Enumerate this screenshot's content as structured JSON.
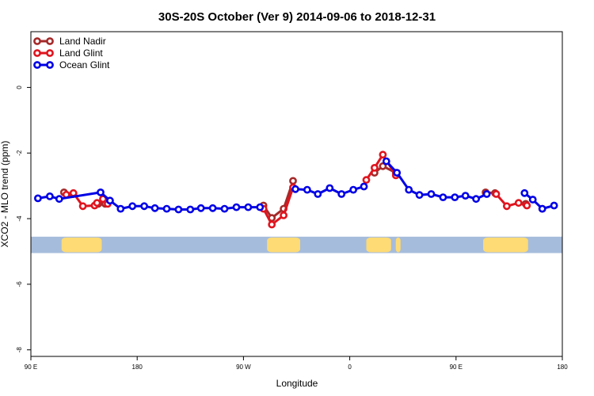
{
  "chart_data": {
    "type": "line",
    "title": "30S-20S October (Ver 9)   2014-09-06 to 2018-12-31",
    "xlabel": "Longitude",
    "ylabel": "XCO2 - MLO trend (ppm)",
    "xlim": [
      90,
      540
    ],
    "ylim": [
      -8.2,
      1.7
    ],
    "x_ticks": [
      {
        "value": 90,
        "label": "90 E"
      },
      {
        "value": 180,
        "label": "180"
      },
      {
        "value": 270,
        "label": "90 W"
      },
      {
        "value": 360,
        "label": "0"
      },
      {
        "value": 450,
        "label": "90 E"
      },
      {
        "value": 540,
        "label": "180"
      }
    ],
    "y_ticks": [
      {
        "value": 0,
        "label": "0"
      },
      {
        "value": -2,
        "label": "-2"
      },
      {
        "value": -4,
        "label": "-4"
      },
      {
        "value": -6,
        "label": "-6"
      },
      {
        "value": -8,
        "label": "-8"
      }
    ],
    "legend_position": "top-left",
    "series": [
      {
        "name": "Land Nadir",
        "color": "#a52a2a",
        "segments": [
          [
            [
              118,
              -3.2
            ],
            [
              126,
              -3.25
            ]
          ],
          [
            [
              147,
              -3.55
            ],
            [
              153,
              -3.55
            ]
          ],
          [
            [
              287,
              -3.6
            ],
            [
              294,
              -3.98
            ],
            [
              304,
              -3.7
            ],
            [
              312,
              -2.85
            ]
          ],
          [
            [
              381,
              -2.6
            ],
            [
              388,
              -2.4
            ],
            [
              399,
              -2.6
            ]
          ],
          [
            [
              475,
              -3.2
            ],
            [
              483,
              -3.22
            ]
          ],
          [
            [
              509,
              -3.55
            ]
          ],
          [
            [
              523,
              -3.7
            ]
          ]
        ]
      },
      {
        "name": "Land Glint",
        "color": "#e0141e",
        "segments": [
          [
            [
              120,
              -3.27
            ],
            [
              126,
              -3.22
            ],
            [
              134,
              -3.62
            ],
            [
              144,
              -3.6
            ],
            [
              146,
              -3.52
            ],
            [
              151,
              -3.4
            ],
            [
              155,
              -3.55
            ]
          ],
          [
            [
              287,
              -3.7
            ],
            [
              294,
              -4.18
            ],
            [
              304,
              -3.9
            ],
            [
              312,
              -3.05
            ]
          ],
          [
            [
              374,
              -2.82
            ],
            [
              381,
              -2.45
            ],
            [
              388,
              -2.05
            ],
            [
              399,
              -2.68
            ]
          ],
          [
            [
              484,
              -3.25
            ],
            [
              493,
              -3.62
            ],
            [
              503,
              -3.52
            ],
            [
              510,
              -3.6
            ]
          ]
        ]
      },
      {
        "name": "Ocean Glint",
        "color": "#0000e6",
        "segments": [
          [
            [
              96,
              -3.38
            ],
            [
              106,
              -3.32
            ],
            [
              114,
              -3.4
            ],
            [
              149,
              -3.2
            ],
            [
              157,
              -3.45
            ],
            [
              166,
              -3.7
            ],
            [
              176,
              -3.62
            ],
            [
              186,
              -3.62
            ],
            [
              195,
              -3.68
            ],
            [
              205,
              -3.7
            ],
            [
              215,
              -3.72
            ],
            [
              225,
              -3.72
            ],
            [
              234,
              -3.68
            ],
            [
              244,
              -3.68
            ],
            [
              254,
              -3.7
            ],
            [
              264,
              -3.65
            ],
            [
              274,
              -3.65
            ],
            [
              284,
              -3.65
            ]
          ],
          [
            [
              314,
              -3.1
            ],
            [
              324,
              -3.12
            ],
            [
              333,
              -3.25
            ],
            [
              343,
              -3.07
            ],
            [
              353,
              -3.25
            ],
            [
              363,
              -3.12
            ],
            [
              372,
              -3.02
            ]
          ],
          [
            [
              391,
              -2.25
            ],
            [
              400,
              -2.6
            ],
            [
              410,
              -3.12
            ],
            [
              419,
              -3.28
            ],
            [
              429,
              -3.25
            ],
            [
              439,
              -3.35
            ],
            [
              449,
              -3.35
            ],
            [
              458,
              -3.3
            ],
            [
              467,
              -3.4
            ],
            [
              476,
              -3.25
            ]
          ],
          [
            [
              508,
              -3.22
            ],
            [
              515,
              -3.42
            ],
            [
              523,
              -3.7
            ],
            [
              533,
              -3.6
            ]
          ]
        ]
      }
    ],
    "surface_strip": {
      "y_range": [
        -5.05,
        -4.55
      ],
      "ocean_color": "#a6bcdc",
      "land_color": "#fedb74",
      "land_ranges": [
        [
          116,
          150
        ],
        [
          290,
          318
        ],
        [
          374,
          395
        ],
        [
          399,
          403
        ],
        [
          473,
          511
        ]
      ]
    }
  }
}
